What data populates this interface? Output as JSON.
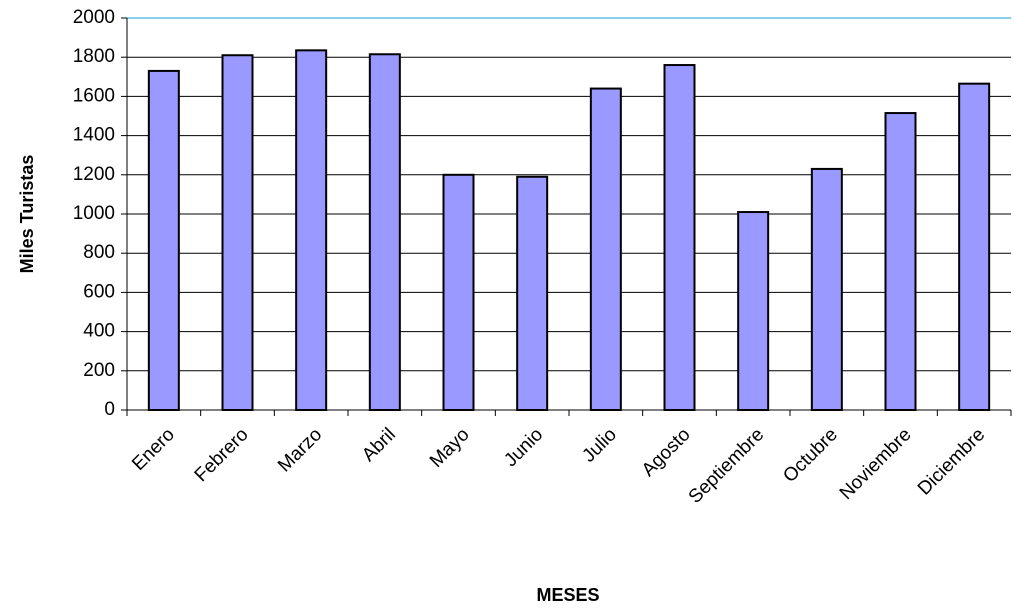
{
  "chart_data": {
    "type": "bar",
    "title": "",
    "xlabel": "MESES",
    "ylabel": "Miles Turistas",
    "categories": [
      "Enero",
      "Febrero",
      "Marzo",
      "Abril",
      "Mayo",
      "Junio",
      "Julio",
      "Agosto",
      "Septiembre",
      "Octubre",
      "Noviembre",
      "Diciembre"
    ],
    "series": [
      {
        "values": [
          1730,
          1810,
          1835,
          1815,
          1200,
          1190,
          1640,
          1760,
          1010,
          1230,
          1515,
          1665
        ]
      }
    ],
    "ylim": [
      0,
      2000
    ],
    "yticks": [
      "0",
      "200",
      "400",
      "600",
      "800",
      "1000",
      "1200",
      "1400",
      "1600",
      "1800",
      "2000"
    ],
    "grid": true,
    "legend": "none",
    "colors": {
      "bar_fill": "#9999ff",
      "bar_stroke": "#000000",
      "gridline": "#000000",
      "plot_border": "#87ceeb"
    }
  }
}
